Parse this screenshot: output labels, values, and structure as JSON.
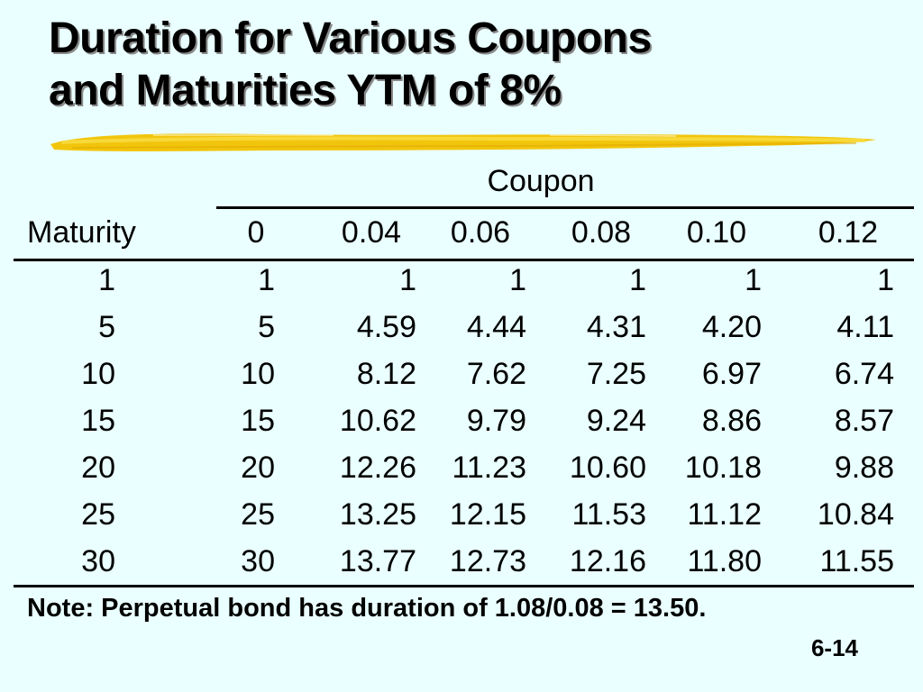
{
  "title": {
    "line1": "Duration for Various Coupons",
    "line2": "and Maturities YTM of 8%"
  },
  "accent_color": "#f2c200",
  "table": {
    "group_header": "Coupon",
    "row_header": "Maturity",
    "coupons": [
      "0",
      "0.04",
      "0.06",
      "0.08",
      "0.10",
      "0.12"
    ],
    "rows": [
      {
        "maturity": "1",
        "values": [
          "1",
          "1",
          "1",
          "1",
          "1",
          "1"
        ]
      },
      {
        "maturity": "5",
        "values": [
          "5",
          "4.59",
          "4.44",
          "4.31",
          "4.20",
          "4.11"
        ]
      },
      {
        "maturity": "10",
        "values": [
          "10",
          "8.12",
          "7.62",
          "7.25",
          "6.97",
          "6.74"
        ]
      },
      {
        "maturity": "15",
        "values": [
          "15",
          "10.62",
          "9.79",
          "9.24",
          "8.86",
          "8.57"
        ]
      },
      {
        "maturity": "20",
        "values": [
          "20",
          "12.26",
          "11.23",
          "10.60",
          "10.18",
          "9.88"
        ]
      },
      {
        "maturity": "25",
        "values": [
          "25",
          "13.25",
          "12.15",
          "11.53",
          "11.12",
          "10.84"
        ]
      },
      {
        "maturity": "30",
        "values": [
          "30",
          "13.77",
          "12.73",
          "12.16",
          "11.80",
          "11.55"
        ]
      }
    ]
  },
  "note": "Note:  Perpetual bond has duration of 1.08/0.08 = 13.50.",
  "slide_number": "6-14"
}
